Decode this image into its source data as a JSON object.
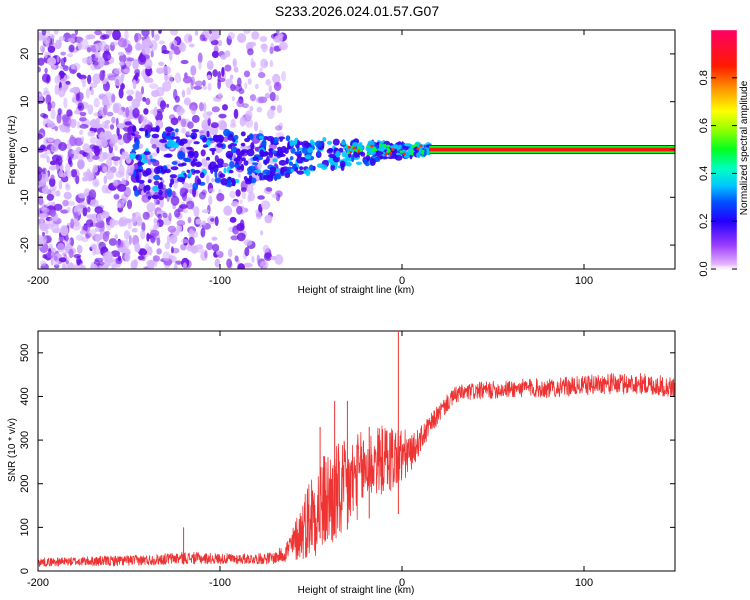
{
  "figure": {
    "title": "S233.2026.024.01.57.G07"
  },
  "chart_data": [
    {
      "type": "heatmap",
      "title": "",
      "xlabel": "Height of straight line (km)",
      "ylabel": "Frequency (Hz)",
      "xlim": [
        -200,
        150
      ],
      "ylim": [
        -25,
        25
      ],
      "xticks": [
        "-200",
        "-100",
        "0",
        "100"
      ],
      "xtick_values": [
        -200,
        -100,
        0,
        100
      ],
      "yticks": [
        "-20",
        "-10",
        "0",
        "10",
        "20"
      ],
      "ytick_values": [
        -20,
        -10,
        0,
        10,
        20
      ],
      "colorbar": {
        "label": "Normalized spectral amplitude",
        "range": [
          0,
          1
        ],
        "ticks": [
          "0.0",
          "0.2",
          "0.4",
          "0.6",
          "0.8"
        ],
        "tick_values": [
          0.0,
          0.2,
          0.4,
          0.6,
          0.8
        ],
        "colors": [
          "#ff00ff",
          "#b400ff",
          "#5a00ff",
          "#0000ff",
          "#0096ff",
          "#00ffff",
          "#00ff96",
          "#00ff00",
          "#96ff00",
          "#ffff00",
          "#ff9600",
          "#ff0000",
          "#ff0060"
        ]
      },
      "features": {
        "noise_region_x": [
          -200,
          -65
        ],
        "signal_onset_x": -148,
        "signal_trace_frequency_hz": 0,
        "signal_trace_start_x": 15,
        "signal_trace_core_amplitude": 0.95,
        "signal_trace_edge_amplitude": 0.5
      }
    },
    {
      "type": "line",
      "title": "",
      "xlabel": "Height of straight line (km)",
      "ylabel": "SNR (10 * v/v)",
      "xlim": [
        -200,
        150
      ],
      "ylim": [
        0,
        550
      ],
      "xticks": [
        "-200",
        "-100",
        "0",
        "100"
      ],
      "xtick_values": [
        -200,
        -100,
        0,
        100
      ],
      "yticks": [
        "0",
        "100",
        "200",
        "300",
        "400",
        "500"
      ],
      "ytick_values": [
        0,
        100,
        200,
        300,
        400,
        500
      ],
      "color": "#ee3333",
      "series": [
        {
          "name": "SNR",
          "x": [
            -200,
            -180,
            -160,
            -140,
            -120,
            -100,
            -80,
            -70,
            -65,
            -60,
            -55,
            -50,
            -45,
            -40,
            -35,
            -30,
            -25,
            -20,
            -15,
            -10,
            -5,
            0,
            5,
            10,
            15,
            20,
            25,
            30,
            40,
            50,
            60,
            70,
            80,
            90,
            100,
            110,
            120,
            130,
            140,
            150
          ],
          "values": [
            20,
            22,
            23,
            25,
            30,
            28,
            28,
            30,
            40,
            60,
            95,
            130,
            150,
            165,
            175,
            190,
            215,
            235,
            250,
            255,
            260,
            262,
            270,
            300,
            330,
            360,
            385,
            405,
            412,
            415,
            417,
            420,
            418,
            422,
            425,
            430,
            428,
            430,
            425,
            420
          ],
          "noise_amplitude": [
            10,
            10,
            12,
            12,
            14,
            12,
            12,
            14,
            20,
            40,
            70,
            100,
            110,
            120,
            120,
            110,
            100,
            90,
            80,
            80,
            80,
            70,
            40,
            30,
            25,
            22,
            20,
            20,
            20,
            20,
            20,
            22,
            22,
            22,
            22,
            24,
            24,
            24,
            24,
            24
          ]
        }
      ],
      "annotations": [
        {
          "x": -120,
          "peak": 100
        },
        {
          "x": -45,
          "peak": 330
        },
        {
          "x": -37,
          "peak": 390
        },
        {
          "x": -30,
          "peak": 390
        },
        {
          "x": -18,
          "peak": 330
        },
        {
          "x": -2,
          "peak": 548
        }
      ]
    }
  ]
}
